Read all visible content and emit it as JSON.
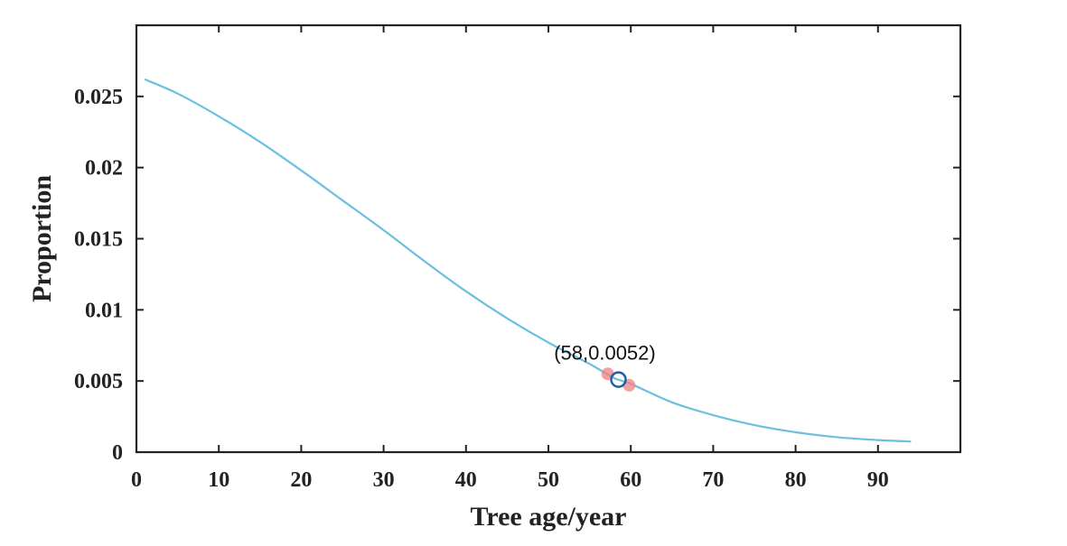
{
  "chart_data": {
    "type": "line",
    "title": "",
    "xlabel": "Tree age/year",
    "ylabel": "Proportion",
    "xlim": [
      0,
      100
    ],
    "ylim": [
      0,
      0.03
    ],
    "x_ticks": [
      0,
      10,
      20,
      30,
      40,
      50,
      60,
      70,
      80,
      90
    ],
    "x_tick_labels": [
      "0",
      "10",
      "20",
      "30",
      "40",
      "50",
      "60",
      "70",
      "80",
      "90"
    ],
    "y_ticks": [
      0,
      0.005,
      0.01,
      0.015,
      0.02,
      0.025
    ],
    "y_tick_labels": [
      "0",
      "0.005",
      "0.01",
      "0.015",
      "0.02",
      "0.025"
    ],
    "grid": false,
    "line_color": "#6bbfdf",
    "series": [
      {
        "x": [
          1,
          5,
          10,
          15,
          20,
          25,
          30,
          35,
          40,
          45,
          50,
          55,
          58,
          60,
          65,
          70,
          75,
          80,
          85,
          90,
          94
        ],
        "y": [
          0.0262,
          0.0252,
          0.0236,
          0.0218,
          0.0198,
          0.0177,
          0.0156,
          0.0134,
          0.0113,
          0.0094,
          0.0077,
          0.0062,
          0.0052,
          0.0048,
          0.0035,
          0.0026,
          0.0019,
          0.0014,
          0.00105,
          0.00085,
          0.00075
        ]
      }
    ],
    "highlight": {
      "label": "(58,0.0052)",
      "x": 58.5,
      "y": 0.0051,
      "marker_color": "#1f5fa8",
      "neighbor_points": [
        {
          "x": 57.2,
          "y": 0.0055
        },
        {
          "x": 59.8,
          "y": 0.0047
        }
      ],
      "neighbor_color": "#f08080"
    }
  }
}
